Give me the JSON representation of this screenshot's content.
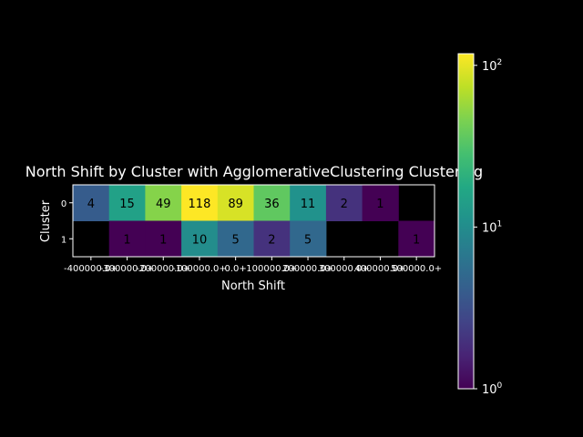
{
  "chart_data": {
    "type": "heatmap",
    "title": "North Shift by Cluster with AgglomerativeClustering Clustering",
    "xlabel": "North Shift",
    "ylabel": "Cluster",
    "x_categories": [
      "-400000.0+",
      "-300000.0+",
      "-200000.0+",
      "-100000.0+",
      "0.0+",
      "100000.0+",
      "200000.0+",
      "300000.0+",
      "400000.0+",
      "500000.0+"
    ],
    "y_categories": [
      "0",
      "1"
    ],
    "values": [
      [
        4,
        15,
        49,
        118,
        89,
        36,
        11,
        2,
        1,
        null
      ],
      [
        null,
        1,
        1,
        10,
        5,
        2,
        5,
        null,
        null,
        1
      ]
    ],
    "colorbar": {
      "scale": "log",
      "range": [
        1,
        118
      ],
      "ticks": [
        {
          "base": "10",
          "exp": "0",
          "value": 1
        },
        {
          "base": "10",
          "exp": "1",
          "value": 10
        },
        {
          "base": "10",
          "exp": "2",
          "value": 100
        }
      ],
      "colormap": "viridis"
    }
  },
  "colors": {
    "background": "#000000",
    "foreground": "#ffffff",
    "cell_text": "#000000"
  }
}
